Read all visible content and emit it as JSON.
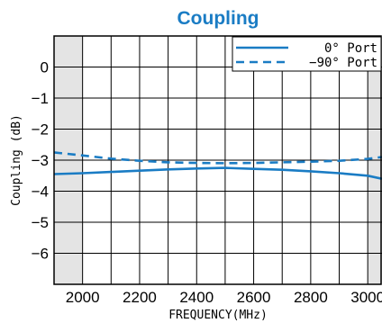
{
  "chart_data": {
    "type": "line",
    "title": "Coupling",
    "xlabel": "FREQUENCY(MHz)",
    "ylabel": "Coupling (dB)",
    "xlim": [
      1900,
      3050
    ],
    "ylim": [
      -7,
      1
    ],
    "xticks": [
      2000,
      2200,
      2400,
      2600,
      2800,
      3000
    ],
    "xtick_labels": [
      "2000",
      "2200",
      "2400",
      "2600",
      "2800",
      "3000"
    ],
    "yticks": [
      0,
      -1,
      -2,
      -3,
      -4,
      -5,
      -6
    ],
    "ytick_labels": [
      "0",
      "−1",
      "−2",
      "−3",
      "−4",
      "−5",
      "−6"
    ],
    "x_grid_step": 100,
    "y_grid_step": 1,
    "grid": true,
    "shaded_regions": [
      [
        1900,
        2000
      ],
      [
        3000,
        3050
      ]
    ],
    "shade_color": "#e4e4e4",
    "legend_position": "top-right",
    "series": [
      {
        "name": "0°  Port",
        "style": "solid",
        "color": "#1a7cc4",
        "x": [
          1900,
          2000,
          2100,
          2200,
          2300,
          2400,
          2500,
          2600,
          2700,
          2800,
          2900,
          3000,
          3050
        ],
        "y": [
          -3.45,
          -3.42,
          -3.38,
          -3.34,
          -3.3,
          -3.27,
          -3.25,
          -3.28,
          -3.31,
          -3.36,
          -3.42,
          -3.5,
          -3.6
        ]
      },
      {
        "name": "−90° Port",
        "style": "dashed",
        "color": "#1a7cc4",
        "x": [
          1900,
          2000,
          2100,
          2200,
          2300,
          2400,
          2500,
          2600,
          2700,
          2800,
          2900,
          3000,
          3050
        ],
        "y": [
          -2.75,
          -2.85,
          -2.95,
          -3.02,
          -3.07,
          -3.09,
          -3.1,
          -3.09,
          -3.07,
          -3.05,
          -3.02,
          -2.96,
          -2.9
        ]
      }
    ]
  }
}
